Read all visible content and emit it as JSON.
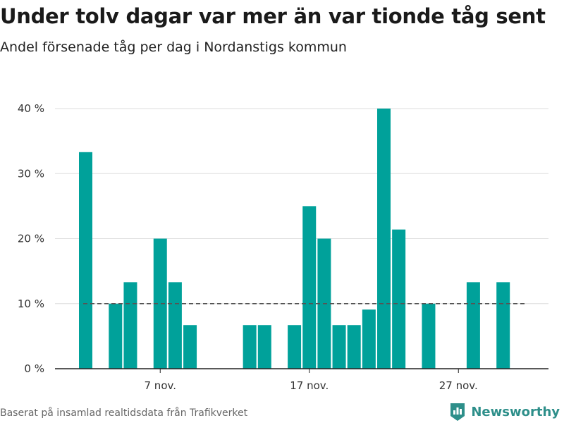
{
  "header": {
    "title": "Under tolv dagar var mer än var tionde tåg sent",
    "subtitle": "Andel försenade tåg per dag i Nordanstigs kommun"
  },
  "footer": {
    "source": "Baserat på insamlad realtidsdata från Trafikverket",
    "brand": "Newsworthy"
  },
  "colors": {
    "bar": "#00a19a",
    "reference_line": "#555555",
    "grid": "#dddddd",
    "brand": "#2e8f8a"
  },
  "chart_data": {
    "type": "bar",
    "title": "Under tolv dagar var mer än var tionde tåg sent",
    "subtitle": "Andel försenade tåg per dag i Nordanstigs kommun",
    "x_unit": "day of November",
    "x": [
      2,
      3,
      4,
      5,
      6,
      7,
      8,
      9,
      10,
      11,
      12,
      13,
      14,
      15,
      16,
      17,
      18,
      19,
      20,
      21,
      22,
      23,
      24,
      25,
      26,
      27,
      28,
      29,
      30
    ],
    "values": [
      33.3,
      0,
      10,
      13.3,
      0,
      20,
      13.3,
      6.7,
      0,
      0,
      0,
      6.7,
      6.7,
      0,
      6.7,
      25,
      20,
      6.7,
      6.7,
      9.1,
      40,
      21.4,
      0,
      10,
      0,
      0,
      13.3,
      0,
      13.3
    ],
    "x_ticks": [
      {
        "x": 7,
        "label": "7 nov."
      },
      {
        "x": 17,
        "label": "17 nov."
      },
      {
        "x": 27,
        "label": "27 nov."
      }
    ],
    "y_ticks": [
      {
        "value": 0,
        "label": "0 %"
      },
      {
        "value": 10,
        "label": "10 %"
      },
      {
        "value": 20,
        "label": "20 %"
      },
      {
        "value": 30,
        "label": "30 %"
      },
      {
        "value": 40,
        "label": "40 %"
      }
    ],
    "ylim": [
      0,
      40
    ],
    "reference_line": {
      "value": 10,
      "style": "dashed"
    },
    "grid": true,
    "legend": "none"
  }
}
